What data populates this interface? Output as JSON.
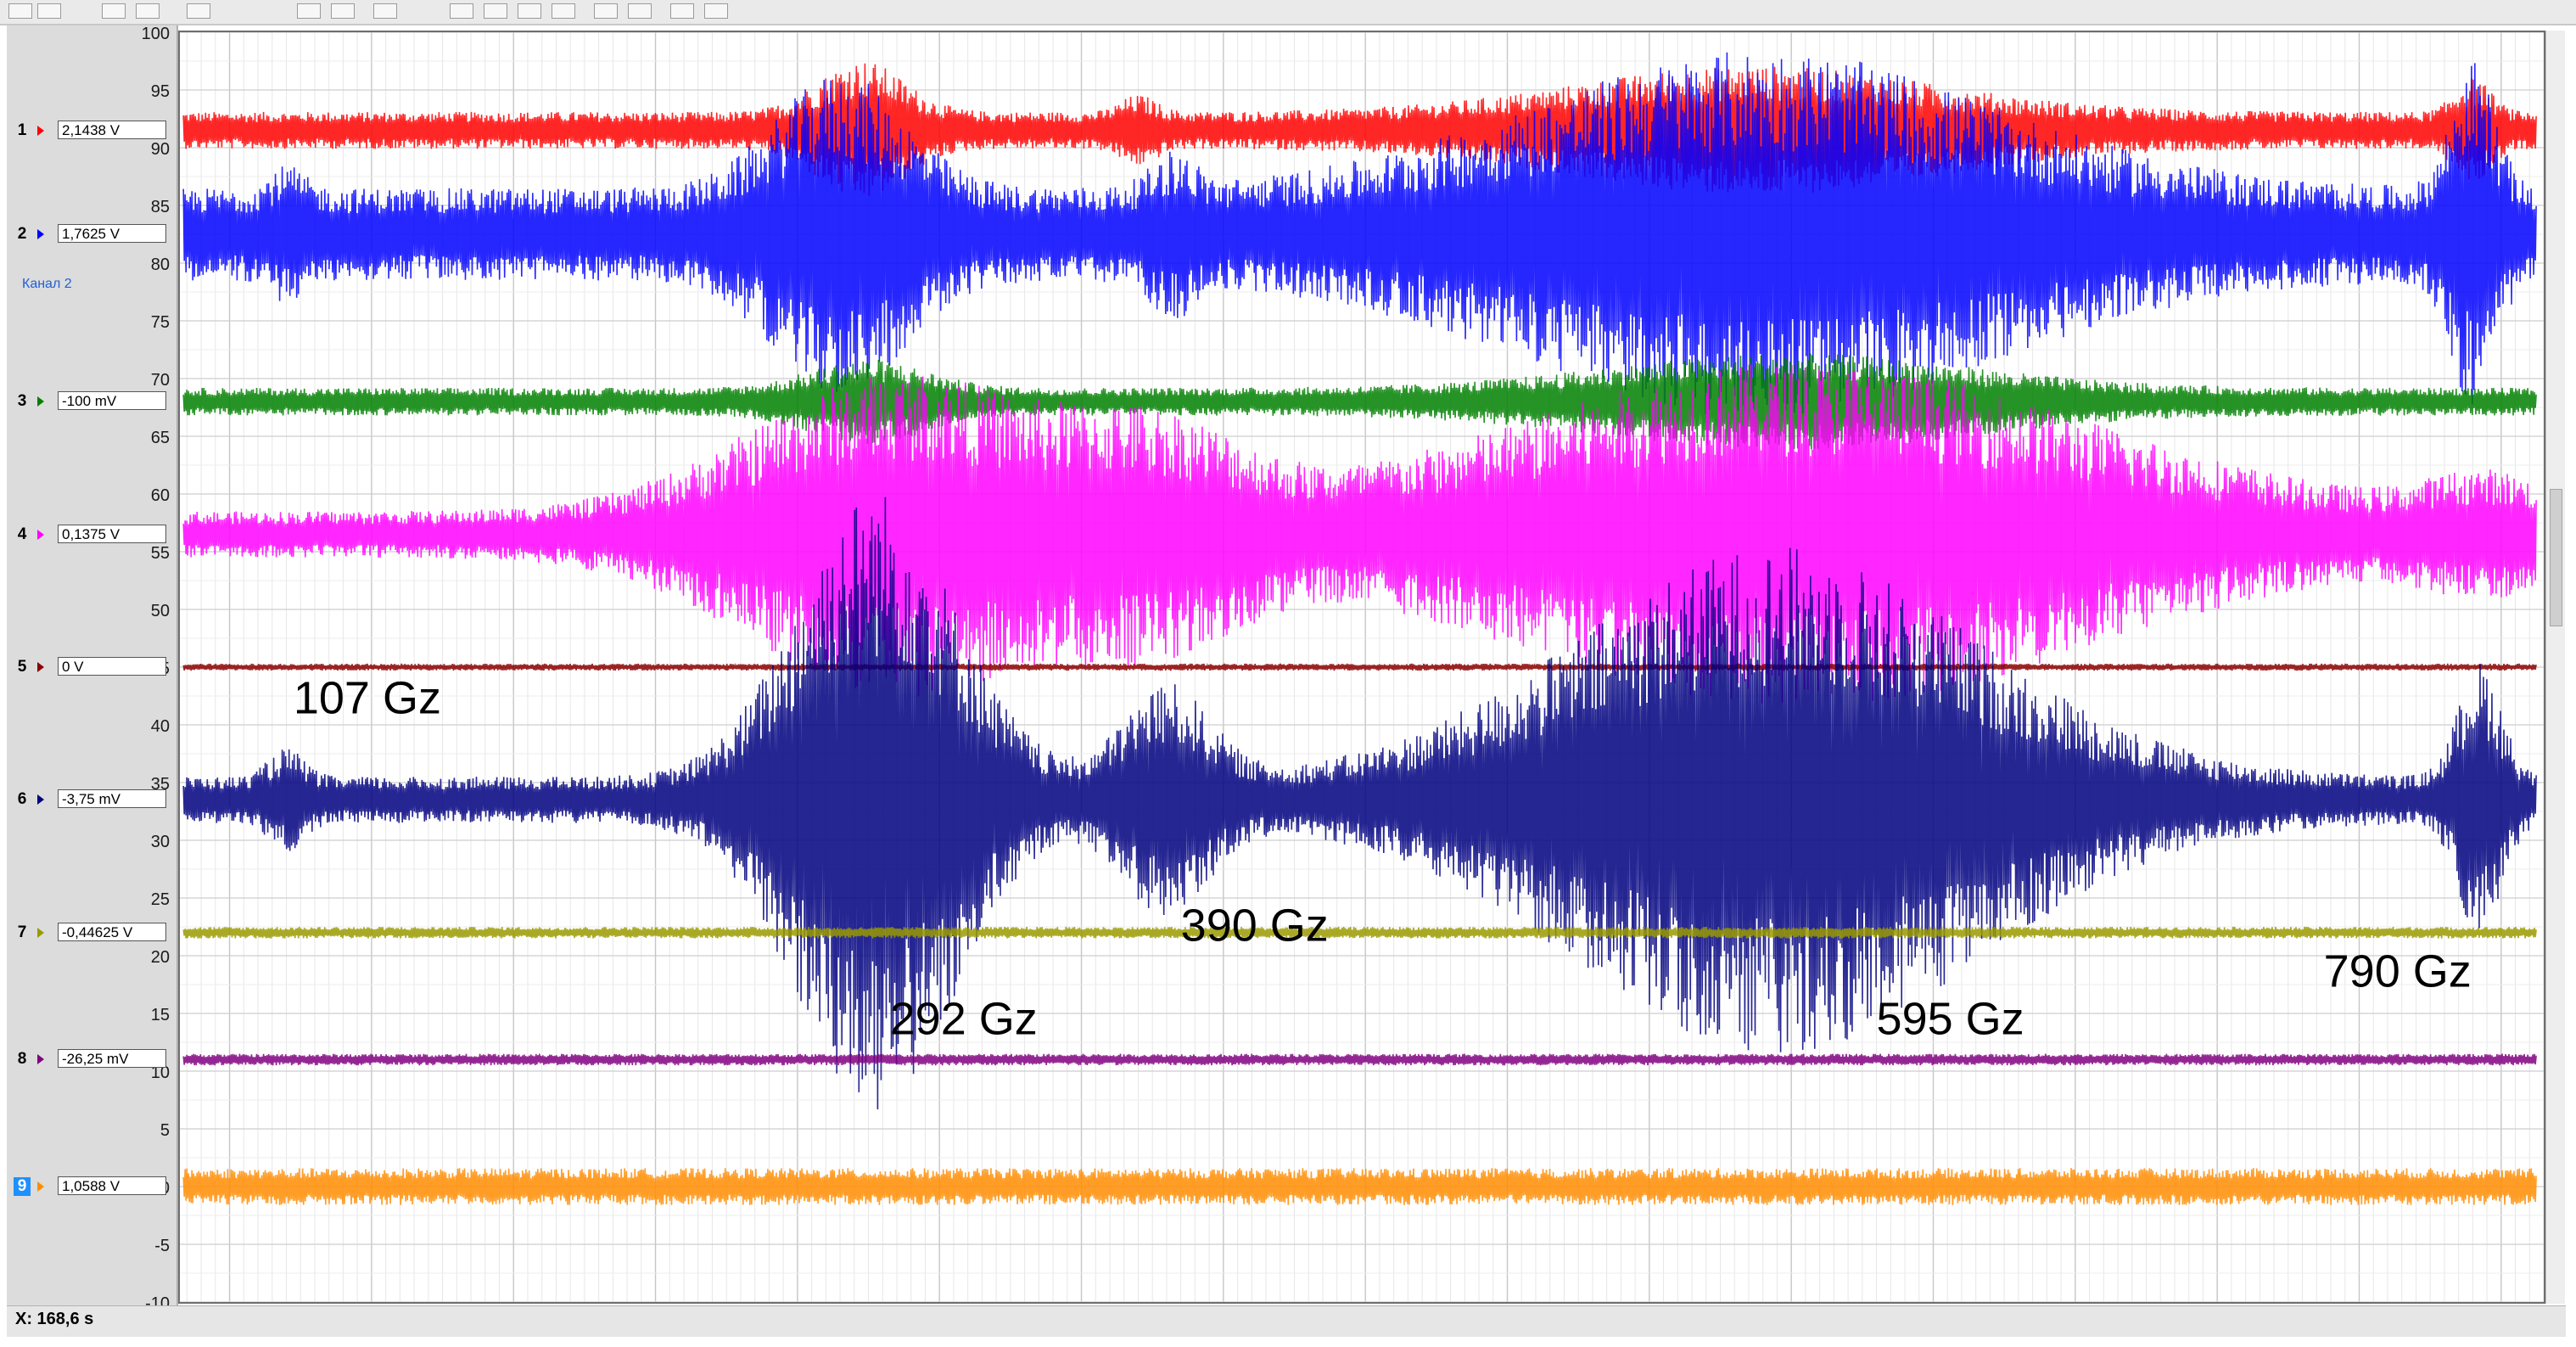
{
  "window": {
    "channel_caption": "Канал 2",
    "x_readout": "X: 168,6 s"
  },
  "channels": [
    {
      "num": "1",
      "value": "2,1438 V",
      "color": "#ff0000",
      "selected": false
    },
    {
      "num": "2",
      "value": "1,7625 V",
      "color": "#0000ff",
      "selected": false
    },
    {
      "num": "3",
      "value": "-100 mV",
      "color": "#008000",
      "selected": false
    },
    {
      "num": "4",
      "value": "0,1375 V",
      "color": "#ff00ff",
      "selected": false
    },
    {
      "num": "5",
      "value": "0 V",
      "color": "#8b0000",
      "selected": false
    },
    {
      "num": "6",
      "value": "-3,75 mV",
      "color": "#000080",
      "selected": false
    },
    {
      "num": "7",
      "value": "-0,44625 V",
      "color": "#9a9a00",
      "selected": false
    },
    {
      "num": "8",
      "value": "-26,25 mV",
      "color": "#800080",
      "selected": false
    },
    {
      "num": "9",
      "value": "1,0588 V",
      "color": "#ff8c00",
      "selected": true
    }
  ],
  "chart_data": {
    "type": "line",
    "title": "",
    "xlabel": "",
    "ylabel": "",
    "xlim": [
      33,
      366
    ],
    "ylim": [
      -10,
      100
    ],
    "x_ticks": [
      40,
      60,
      80,
      100,
      120,
      140,
      160,
      180,
      200,
      220,
      240,
      260,
      280,
      300,
      320,
      340,
      360
    ],
    "y_ticks": [
      100,
      95,
      90,
      85,
      80,
      75,
      70,
      65,
      60,
      55,
      50,
      45,
      40,
      35,
      30,
      25,
      20,
      15,
      10,
      5,
      0,
      -5,
      -10
    ],
    "grid": true,
    "series": [
      {
        "channel": "1",
        "color": "#ff0000",
        "baseline": 91.5,
        "amplitude": 1.6,
        "bursts": [
          [
            129,
            4.5,
            6
          ],
          [
            168,
            1.5,
            2.5
          ],
          [
            255,
            4.0,
            25
          ],
          [
            356,
            3,
            2.5
          ]
        ]
      },
      {
        "channel": "2",
        "color": "#0000ff",
        "baseline": 82.5,
        "amplitude": 4,
        "bursts": [
          [
            48,
            2,
            2.5
          ],
          [
            126,
            10,
            9
          ],
          [
            173,
            3,
            3
          ],
          [
            256,
            12,
            32
          ],
          [
            356,
            11,
            3
          ]
        ]
      },
      {
        "channel": "3",
        "color": "#008000",
        "baseline": 68.0,
        "amplitude": 1.2,
        "bursts": [
          [
            130,
            2.5,
            8
          ],
          [
            260,
            3,
            25
          ]
        ]
      },
      {
        "channel": "4",
        "color": "#ff00ff",
        "baseline": 56.5,
        "amplitude": 2,
        "bursts": [
          [
            134,
            12,
            20
          ],
          [
            171,
            6,
            12
          ],
          [
            262,
            13,
            40
          ],
          [
            358,
            3,
            8
          ]
        ]
      },
      {
        "channel": "5",
        "color": "#8b0000",
        "baseline": 45.0,
        "amplitude": 0.3,
        "bursts": []
      },
      {
        "channel": "6",
        "color": "#000080",
        "baseline": 33.5,
        "amplitude": 2,
        "bursts": [
          [
            48,
            2.5,
            2.5
          ],
          [
            131,
            25,
            11
          ],
          [
            172,
            8,
            6
          ],
          [
            258,
            20,
            28
          ],
          [
            357,
            10,
            3
          ]
        ]
      },
      {
        "channel": "7",
        "color": "#9a9a00",
        "baseline": 22.0,
        "amplitude": 0.5,
        "bursts": []
      },
      {
        "channel": "8",
        "color": "#800080",
        "baseline": 11.0,
        "amplitude": 0.5,
        "bursts": []
      },
      {
        "channel": "9",
        "color": "#ff8c00",
        "baseline": 0.0,
        "amplitude": 1.6,
        "bursts": []
      }
    ],
    "annotations": [
      {
        "text": "107 Gz",
        "x": 49,
        "y": 41
      },
      {
        "text": "292 Gz",
        "x": 133,
        "y": 13.2
      },
      {
        "text": "390 Gz",
        "x": 174,
        "y": 21.3
      },
      {
        "text": "595 Gz",
        "x": 272,
        "y": 13.2
      },
      {
        "text": "790 Gz",
        "x": 335,
        "y": 17.3
      }
    ]
  }
}
